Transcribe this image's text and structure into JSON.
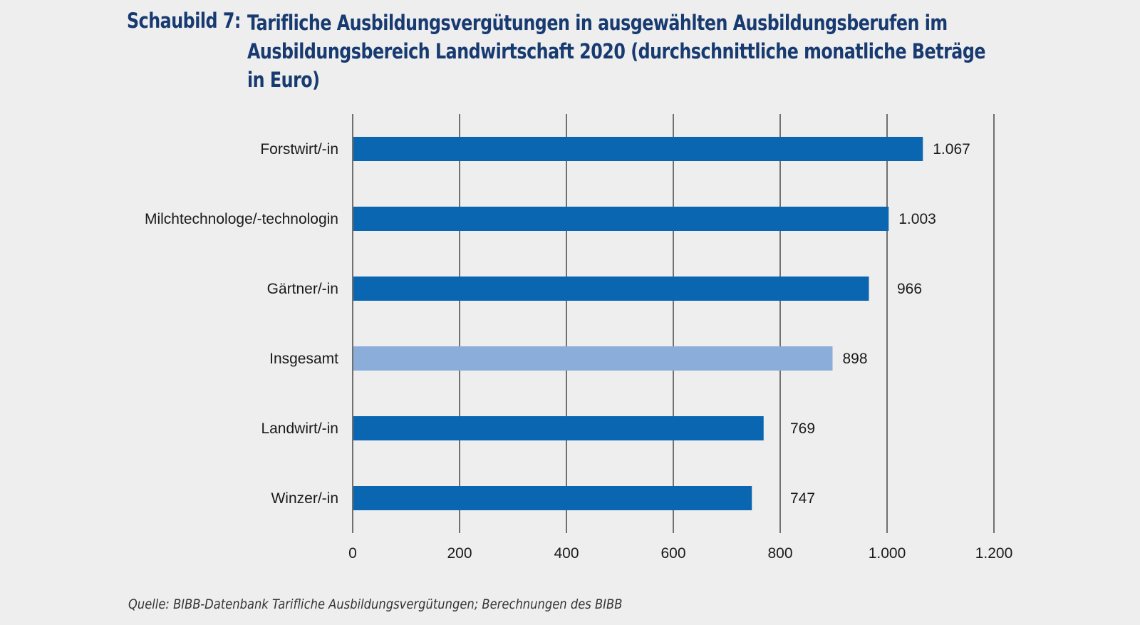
{
  "title": {
    "prefix": "Schaubild 7:",
    "lines": [
      "Tarifliche Ausbildungsvergütungen in ausgewählten Ausbildungsberufen im",
      "Ausbildungsbereich Landwirtschaft 2020 (durchschnittliche monatliche Beträge",
      "in Euro)"
    ]
  },
  "source": "Quelle: BIBB-Datenbank Tarifliche Ausbildungsvergütungen; Berechnungen des BIBB",
  "colors": {
    "bar": "#0a66b0",
    "highlight_bar": "#8badda",
    "gridline": "#707070",
    "title": "#173a70",
    "background": "#eeeeee"
  },
  "chart_data": {
    "type": "bar",
    "orientation": "horizontal",
    "title": "Tarifliche Ausbildungsvergütungen in ausgewählten Ausbildungsberufen im Ausbildungsbereich Landwirtschaft 2020 (durchschnittliche monatliche Beträge in Euro)",
    "xlabel": "",
    "ylabel": "",
    "categories": [
      "Forstwirt/-in",
      "Milchtechnologe/-technologin",
      "Gärtner/-in",
      "Insgesamt",
      "Landwirt/-in",
      "Winzer/-in"
    ],
    "values": [
      1067,
      1003,
      966,
      898,
      769,
      747
    ],
    "value_labels": [
      "1.067",
      "1.003",
      "966",
      "898",
      "769",
      "747"
    ],
    "highlight": [
      "Insgesamt"
    ],
    "xlim": [
      0,
      1200
    ],
    "xticks": [
      0,
      200,
      400,
      600,
      800,
      1000,
      1200
    ],
    "xtick_labels": [
      "0",
      "200",
      "400",
      "600",
      "800",
      "1.000",
      "1.200"
    ],
    "grid": true,
    "legend": "none"
  }
}
